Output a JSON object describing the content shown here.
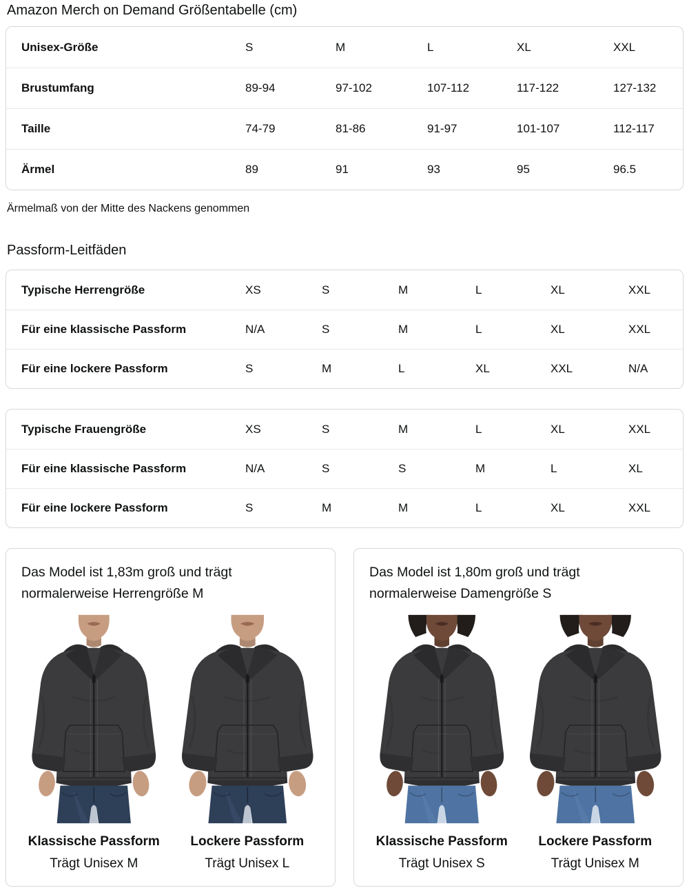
{
  "title": "Amazon Merch on Demand Größentabelle (cm)",
  "size_table": {
    "rows": [
      {
        "label": "Unisex-Größe",
        "values": [
          "S",
          "M",
          "L",
          "XL",
          "XXL"
        ]
      },
      {
        "label": "Brustumfang",
        "values": [
          "89-94",
          "97-102",
          "107-112",
          "117-122",
          "127-132"
        ]
      },
      {
        "label": "Taille",
        "values": [
          "74-79",
          "81-86",
          "91-97",
          "101-107",
          "112-117"
        ]
      },
      {
        "label": "Ärmel",
        "values": [
          "89",
          "91",
          "93",
          "95",
          "96.5"
        ]
      }
    ]
  },
  "size_note": "Ärmelmaß von der Mitte des Nackens genommen",
  "fit_heading": "Passform-Leitfäden",
  "mens_fit_table": {
    "rows": [
      {
        "label": "Typische Herrengröße",
        "values": [
          "XS",
          "S",
          "M",
          "L",
          "XL",
          "XXL"
        ]
      },
      {
        "label": "Für eine klassische Passform",
        "values": [
          "N/A",
          "S",
          "M",
          "L",
          "XL",
          "XXL"
        ]
      },
      {
        "label": "Für eine lockere Passform",
        "values": [
          "S",
          "M",
          "L",
          "XL",
          "XXL",
          "N/A"
        ]
      }
    ]
  },
  "womens_fit_table": {
    "rows": [
      {
        "label": "Typische Frauengröße",
        "values": [
          "XS",
          "S",
          "M",
          "L",
          "XL",
          "XXL"
        ]
      },
      {
        "label": "Für eine klassische Passform",
        "values": [
          "N/A",
          "S",
          "S",
          "M",
          "L",
          "XL"
        ]
      },
      {
        "label": "Für eine lockere Passform",
        "values": [
          "S",
          "M",
          "M",
          "L",
          "XL",
          "XXL"
        ]
      }
    ]
  },
  "model_cards": [
    {
      "description": "Das Model ist 1,83m groß und trägt normalerweise Herrengröße M",
      "photos": [
        {
          "figure": "male-model-in-zip-hoodie",
          "fit": "Klassische Passform",
          "wears": "Trägt Unisex M"
        },
        {
          "figure": "male-model-in-zip-hoodie",
          "fit": "Lockere Passform",
          "wears": "Trägt Unisex L"
        }
      ]
    },
    {
      "description": "Das Model ist 1,80m groß und trägt normalerweise Damengröße S",
      "photos": [
        {
          "figure": "female-model-in-zip-hoodie",
          "fit": "Klassische Passform",
          "wears": "Trägt Unisex S"
        },
        {
          "figure": "female-model-in-zip-hoodie",
          "fit": "Lockere Passform",
          "wears": "Trägt Unisex M"
        }
      ]
    }
  ],
  "colors": {
    "text": "#0f1111",
    "border": "#d5d9d9",
    "divider": "#e7e7e7",
    "hoodie": "#3b3b3d",
    "hoodie_dark": "#2b2b2d",
    "trim": "#2f2f31",
    "stitch": "#5a5a5e",
    "male_skin": "#c79d82",
    "male_lip": "#9a6a55",
    "male_jeans": "#2e3f58",
    "female_skin": "#6f4a38",
    "female_lip": "#4a2d25",
    "female_jeans": "#4f74a3",
    "hair_color": "#221d1a"
  }
}
